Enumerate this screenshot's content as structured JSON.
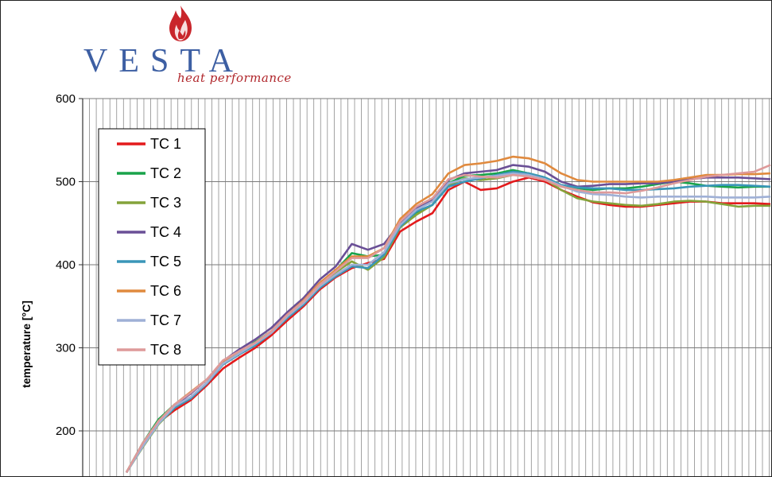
{
  "brand": {
    "name": "VESTA",
    "tagline": "heat performance",
    "flame_color": "#c9252b",
    "word_color": "#3d5fa3"
  },
  "chart_data": {
    "type": "line",
    "title": "",
    "xlabel": "",
    "ylabel": "temperature [°C]",
    "ylim": [
      150,
      600
    ],
    "y_ticks": [
      200,
      300,
      400,
      500,
      600
    ],
    "grid": "on",
    "legend_placement": "top-left",
    "x": [
      0,
      2,
      4,
      6,
      8,
      10,
      12,
      14,
      16,
      18,
      20,
      22,
      24,
      26,
      28,
      30,
      32,
      34,
      36,
      38,
      40,
      42,
      44,
      46,
      48,
      50,
      52,
      54,
      56,
      58,
      60,
      62,
      64,
      66,
      68,
      70,
      72,
      74,
      76,
      78,
      80
    ],
    "series": [
      {
        "name": "TC 1",
        "color": "#e31a1c",
        "values": [
          150,
          183,
          210,
          225,
          237,
          255,
          275,
          288,
          300,
          315,
          333,
          350,
          370,
          385,
          396,
          402,
          407,
          440,
          452,
          462,
          490,
          500,
          490,
          492,
          500,
          505,
          500,
          490,
          482,
          475,
          472,
          470,
          470,
          472,
          474,
          476,
          476,
          474,
          474,
          474,
          473
        ]
      },
      {
        "name": "TC 2",
        "color": "#19a34a",
        "values": [
          150,
          185,
          214,
          232,
          240,
          258,
          282,
          294,
          307,
          320,
          340,
          356,
          375,
          393,
          414,
          410,
          412,
          448,
          463,
          472,
          498,
          507,
          508,
          510,
          514,
          510,
          505,
          496,
          492,
          490,
          492,
          492,
          494,
          497,
          500,
          498,
          495,
          494,
          493,
          494,
          494
        ]
      },
      {
        "name": "TC 3",
        "color": "#84a33a",
        "values": [
          150,
          180,
          208,
          228,
          240,
          258,
          280,
          292,
          306,
          318,
          336,
          355,
          375,
          391,
          404,
          394,
          409,
          445,
          460,
          472,
          495,
          504,
          502,
          504,
          508,
          510,
          503,
          490,
          480,
          476,
          474,
          472,
          471,
          473,
          476,
          477,
          476,
          473,
          470,
          471,
          471
        ]
      },
      {
        "name": "TC 4",
        "color": "#6a4f96",
        "values": [
          150,
          182,
          210,
          231,
          245,
          262,
          284,
          298,
          310,
          324,
          343,
          360,
          382,
          398,
          425,
          418,
          425,
          450,
          468,
          478,
          502,
          510,
          512,
          514,
          520,
          518,
          512,
          500,
          494,
          495,
          497,
          497,
          498,
          498,
          500,
          503,
          505,
          505,
          505,
          504,
          503
        ]
      },
      {
        "name": "TC 5",
        "color": "#3a96b8",
        "values": [
          150,
          181,
          209,
          228,
          239,
          257,
          280,
          292,
          303,
          318,
          336,
          352,
          372,
          386,
          398,
          396,
          412,
          446,
          464,
          472,
          494,
          500,
          504,
          508,
          512,
          510,
          505,
          496,
          493,
          492,
          492,
          490,
          490,
          491,
          492,
          494,
          495,
          496,
          496,
          495,
          494
        ]
      },
      {
        "name": "TC 6",
        "color": "#e08a3e",
        "values": [
          150,
          183,
          212,
          232,
          247,
          262,
          283,
          295,
          306,
          320,
          340,
          357,
          378,
          394,
          410,
          410,
          420,
          455,
          473,
          485,
          510,
          520,
          522,
          525,
          530,
          528,
          522,
          510,
          502,
          500,
          500,
          500,
          500,
          500,
          502,
          505,
          508,
          508,
          509,
          509,
          510
        ]
      },
      {
        "name": "TC 7",
        "color": "#9fb0d6",
        "values": [
          150,
          181,
          209,
          230,
          241,
          258,
          281,
          293,
          305,
          318,
          338,
          354,
          374,
          388,
          400,
          400,
          415,
          448,
          466,
          476,
          498,
          503,
          505,
          507,
          510,
          508,
          503,
          495,
          488,
          485,
          484,
          482,
          481,
          482,
          482,
          482,
          482,
          481,
          481,
          481,
          482
        ]
      },
      {
        "name": "TC 8",
        "color": "#de9a9a",
        "values": [
          150,
          185,
          212,
          232,
          246,
          262,
          285,
          296,
          306,
          320,
          340,
          356,
          376,
          392,
          408,
          408,
          420,
          452,
          470,
          480,
          503,
          508,
          506,
          505,
          508,
          506,
          502,
          494,
          490,
          487,
          487,
          486,
          489,
          493,
          498,
          502,
          506,
          508,
          510,
          512,
          520
        ]
      }
    ]
  }
}
